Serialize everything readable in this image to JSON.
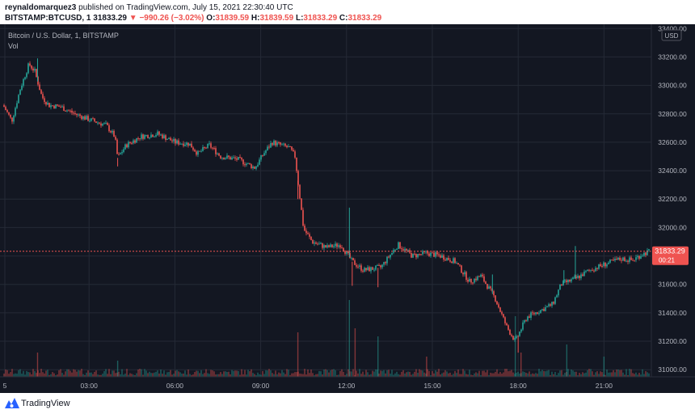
{
  "header": {
    "line1": {
      "user": "reynaldomarquez3",
      "text": " published on TradingView.com, July 15, 2021 22:30:40 UTC"
    },
    "line2": {
      "symbol": "BITSTAMP:BTCUSD, 1",
      "last": "31833.29",
      "arrow": "▼",
      "change": "−990.26 (−3.02%)",
      "o_label": "O:",
      "o_val": "31839.59",
      "h_label": "H:",
      "h_val": "31839.59",
      "l_label": "L:",
      "l_val": "31833.29",
      "c_label": "C:",
      "c_val": "31833.29"
    }
  },
  "legend": {
    "title": "Bitcoin / U.S. Dollar, 1, BITSTAMP",
    "vol": "Vol"
  },
  "price_scale": {
    "currency": "USD"
  },
  "price_label": {
    "value": "31833.29",
    "countdown": "00:21"
  },
  "footer": {
    "brand": "TradingView"
  },
  "colors": {
    "background": "#131722",
    "grid": "#252a36",
    "up": "#26a69a",
    "down": "#ef5350",
    "text": "#b2b5be",
    "last_price": "#ef5350"
  },
  "chart_data": {
    "type": "candlestick",
    "interval": "1 minute",
    "y_ticks": [
      33400,
      33200,
      33000,
      32800,
      32600,
      32400,
      32200,
      32000,
      31800,
      31600,
      31400,
      31200,
      31000
    ],
    "x_ticks": [
      "5",
      "03:00",
      "06:00",
      "09:00",
      "12:00",
      "15:00",
      "18:00",
      "21:00"
    ],
    "x_tick_hours": [
      0,
      3,
      6,
      9,
      12,
      15,
      18,
      21
    ],
    "x_range_hours": [
      0,
      22.6
    ],
    "ylim": [
      30950,
      33430
    ],
    "last_price": 31833.29,
    "price_path": [
      [
        0.0,
        32860
      ],
      [
        0.3,
        32750
      ],
      [
        0.6,
        32980
      ],
      [
        0.9,
        33150
      ],
      [
        1.1,
        33100
      ],
      [
        1.35,
        32920
      ],
      [
        1.6,
        32860
      ],
      [
        2.0,
        32850
      ],
      [
        2.5,
        32800
      ],
      [
        3.0,
        32760
      ],
      [
        3.6,
        32720
      ],
      [
        3.9,
        32640
      ],
      [
        4.0,
        32490
      ],
      [
        4.3,
        32580
      ],
      [
        4.8,
        32640
      ],
      [
        5.4,
        32660
      ],
      [
        6.0,
        32600
      ],
      [
        6.5,
        32590
      ],
      [
        6.8,
        32520
      ],
      [
        7.2,
        32580
      ],
      [
        7.6,
        32500
      ],
      [
        8.2,
        32480
      ],
      [
        8.8,
        32420
      ],
      [
        9.1,
        32520
      ],
      [
        9.4,
        32600
      ],
      [
        10.0,
        32560
      ],
      [
        10.2,
        32500
      ],
      [
        10.5,
        31990
      ],
      [
        10.8,
        31900
      ],
      [
        11.3,
        31860
      ],
      [
        11.8,
        31880
      ],
      [
        12.2,
        31760
      ],
      [
        12.6,
        31700
      ],
      [
        13.2,
        31720
      ],
      [
        13.8,
        31880
      ],
      [
        14.3,
        31800
      ],
      [
        14.8,
        31820
      ],
      [
        15.3,
        31800
      ],
      [
        15.8,
        31760
      ],
      [
        16.3,
        31620
      ],
      [
        16.7,
        31660
      ],
      [
        17.2,
        31500
      ],
      [
        17.6,
        31300
      ],
      [
        17.9,
        31200
      ],
      [
        18.3,
        31370
      ],
      [
        18.8,
        31420
      ],
      [
        19.2,
        31460
      ],
      [
        19.5,
        31600
      ],
      [
        20.0,
        31640
      ],
      [
        20.5,
        31700
      ],
      [
        21.0,
        31740
      ],
      [
        21.6,
        31780
      ],
      [
        22.0,
        31770
      ],
      [
        22.3,
        31810
      ],
      [
        22.6,
        31833.29
      ]
    ],
    "wicks": [
      [
        4.0,
        32430
      ],
      [
        10.3,
        32200
      ],
      [
        12.2,
        31590
      ],
      [
        13.1,
        31580
      ],
      [
        12.1,
        32140
      ],
      [
        17.1,
        31670
      ],
      [
        18.0,
        31120
      ],
      [
        20.0,
        31870
      ],
      [
        19.6,
        31700
      ],
      [
        1.2,
        33190
      ]
    ],
    "volume_spikes": [
      [
        12.1,
        0.95
      ],
      [
        12.3,
        0.6
      ],
      [
        13.1,
        0.5
      ],
      [
        10.3,
        0.55
      ],
      [
        17.9,
        0.75
      ],
      [
        18.1,
        0.3
      ],
      [
        19.7,
        0.4
      ],
      [
        1.2,
        0.3
      ],
      [
        4.0,
        0.2
      ],
      [
        14.8,
        0.25
      ],
      [
        21.0,
        0.25
      ]
    ]
  }
}
